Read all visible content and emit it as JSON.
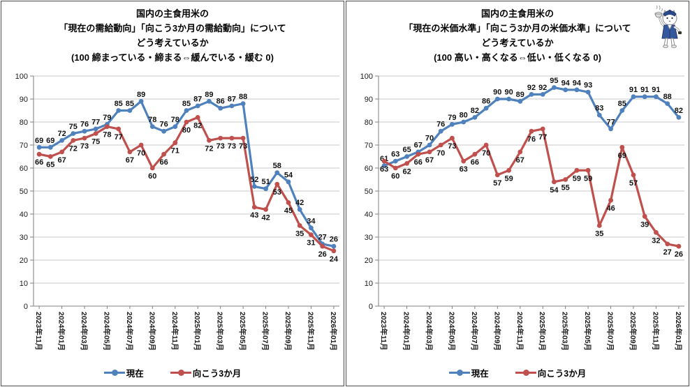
{
  "mascot_icon": "steaming-rice-bowl-cat-mascot",
  "chart_data": [
    {
      "type": "line",
      "title_lines": [
        "国内の主食用米の",
        "「現在の需給動向」「向こう3か月の需給動向」について",
        "どう考えているか",
        "(100  締まっている・締まる⇔緩んでいる・緩む  0)"
      ],
      "ylim": [
        0,
        100
      ],
      "ytick_step": 10,
      "grid": true,
      "legend_position": "bottom",
      "tick_every": 2,
      "tick_labels": [
        "2023年11月",
        "2024年01月",
        "2024年03月",
        "2024年05月",
        "2024年07月",
        "2024年09月",
        "2024年11月",
        "2025年01月",
        "2025年03月",
        "2025年05月",
        "2025年07月",
        "2025年09月",
        "2025年11月",
        "2026年01月"
      ],
      "series": [
        {
          "name": "現在",
          "color": "#4F81BD",
          "label_side": "above",
          "values": [
            69,
            69,
            72,
            75,
            76,
            77,
            79,
            85,
            85,
            89,
            78,
            76,
            78,
            85,
            87,
            89,
            86,
            87,
            88,
            52,
            51,
            58,
            54,
            42,
            34,
            27,
            26
          ]
        },
        {
          "name": "向こう3か月",
          "color": "#C0504D",
          "label_side": "below",
          "values": [
            66,
            65,
            67,
            72,
            73,
            75,
            78,
            77,
            67,
            70,
            60,
            66,
            71,
            80,
            82,
            72,
            73,
            73,
            73,
            43,
            42,
            53,
            45,
            35,
            31,
            26,
            24
          ]
        }
      ]
    },
    {
      "type": "line",
      "title_lines": [
        "国内の主食用米の",
        "「現在の米価水準」「向こう3か月の米価水準」について",
        "どう考えているか",
        "(100  高い・高くなる⇔低い・低くなる  0)"
      ],
      "ylim": [
        0,
        100
      ],
      "ytick_step": 10,
      "grid": true,
      "legend_position": "bottom",
      "tick_every": 2,
      "tick_labels": [
        "2023年11月",
        "2024年01月",
        "2024年03月",
        "2024年05月",
        "2024年07月",
        "2024年09月",
        "2024年11月",
        "2025年01月",
        "2025年03月",
        "2025年05月",
        "2025年07月",
        "2025年09月",
        "2025年11月",
        "2026年01月"
      ],
      "series": [
        {
          "name": "現在",
          "color": "#4F81BD",
          "label_side": "above",
          "values": [
            61,
            63,
            65,
            67,
            70,
            76,
            79,
            80,
            82,
            86,
            90,
            90,
            89,
            92,
            92,
            95,
            94,
            94,
            93,
            83,
            77,
            85,
            91,
            91,
            91,
            88,
            82
          ]
        },
        {
          "name": "向こう3か月",
          "color": "#C0504D",
          "label_side": "below",
          "values": [
            63,
            60,
            62,
            66,
            67,
            70,
            73,
            63,
            66,
            70,
            57,
            59,
            67,
            76,
            77,
            54,
            55,
            59,
            59,
            35,
            46,
            69,
            57,
            39,
            32,
            27,
            26
          ]
        }
      ]
    }
  ]
}
